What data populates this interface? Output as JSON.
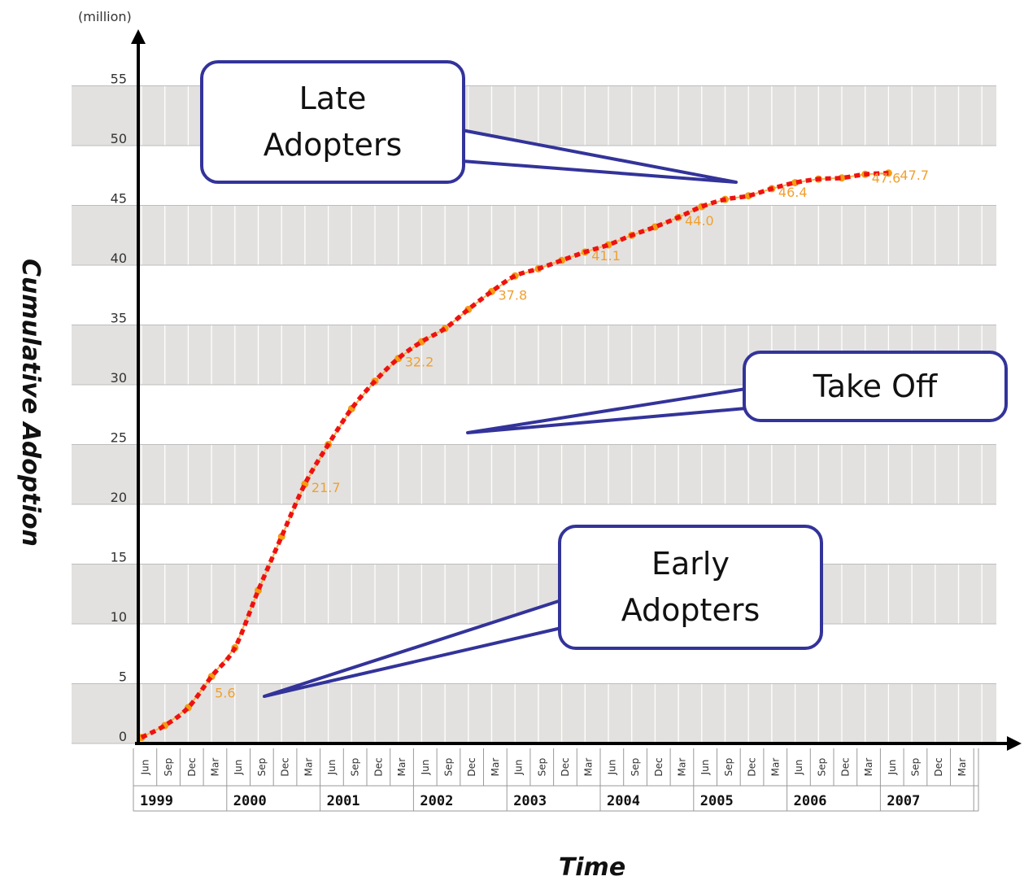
{
  "chart_data": {
    "type": "line",
    "unit_label": "(million)",
    "xlabel": "Time",
    "ylabel": "Cumulative Adoption",
    "ylim": [
      0,
      60
    ],
    "y_ticks": [
      0,
      5,
      10,
      15,
      20,
      25,
      30,
      35,
      40,
      45,
      50,
      55
    ],
    "grid": true,
    "month_labels": [
      "Jun",
      "Sep",
      "Dec",
      "Mar",
      "Jun",
      "Sep",
      "Dec",
      "Mar",
      "Jun",
      "Sep",
      "Dec",
      "Mar",
      "Jun",
      "Sep",
      "Dec",
      "Mar",
      "Jun",
      "Sep",
      "Dec",
      "Mar",
      "Jun",
      "Sep",
      "Dec",
      "Mar",
      "Jun",
      "Sep",
      "Dec",
      "Mar",
      "Jun",
      "Sep",
      "Dec",
      "Mar",
      "Jun",
      "Sep",
      "Dec",
      "Mar"
    ],
    "year_labels": [
      "1999",
      "2000",
      "2001",
      "2002",
      "2003",
      "2004",
      "2005",
      "2006",
      "2007"
    ],
    "x": [
      "Jun 1999",
      "Sep 1999",
      "Dec 1999",
      "Mar 2000",
      "Jun 2000",
      "Sep 2000",
      "Dec 2000",
      "Mar 2001",
      "Jun 2001",
      "Sep 2001",
      "Dec 2001",
      "Mar 2002",
      "Jun 2002",
      "Sep 2002",
      "Dec 2002",
      "Mar 2003",
      "Jun 2003",
      "Sep 2003",
      "Dec 2003",
      "Mar 2004",
      "Jun 2004",
      "Sep 2004",
      "Dec 2004",
      "Mar 2005",
      "Jun 2005",
      "Sep 2005",
      "Dec 2005",
      "Mar 2006",
      "Jun 2006",
      "Sep 2006",
      "Dec 2006",
      "Mar 2007",
      "Jun 2007"
    ],
    "series": [
      {
        "values": [
          0.5,
          1.5,
          3.0,
          5.6,
          8.0,
          12.8,
          17.3,
          21.7,
          25.0,
          28.0,
          30.3,
          32.2,
          33.6,
          34.7,
          36.3,
          37.8,
          39.1,
          39.7,
          40.4,
          41.1,
          41.7,
          42.5,
          43.2,
          44.0,
          44.9,
          45.5,
          45.8,
          46.4,
          46.9,
          47.2,
          47.3,
          47.6,
          47.7
        ]
      }
    ],
    "data_labels": [
      {
        "index": 3,
        "text": "5.6"
      },
      {
        "index": 7,
        "text": "21.7"
      },
      {
        "index": 11,
        "text": "32.2"
      },
      {
        "index": 15,
        "text": "37.8"
      },
      {
        "index": 19,
        "text": "41.1"
      },
      {
        "index": 23,
        "text": "44.0"
      },
      {
        "index": 27,
        "text": "46.4"
      },
      {
        "index": 31,
        "text": "47.6"
      },
      {
        "index": 32,
        "text": "47.7"
      }
    ],
    "annotations": [
      {
        "text_lines": [
          "Late",
          "Adopters"
        ],
        "points_to_index": 25
      },
      {
        "text_lines": [
          "Take Off"
        ],
        "points_to_index": 14
      },
      {
        "text_lines": [
          "Early",
          "Adopters"
        ],
        "points_to_index": 4
      }
    ],
    "colors": {
      "trend_line": "#ee1111",
      "data_line": "#f5b041",
      "data_point": "#f39c12",
      "band": "#e2e1df",
      "callout_border": "#33339a"
    }
  }
}
